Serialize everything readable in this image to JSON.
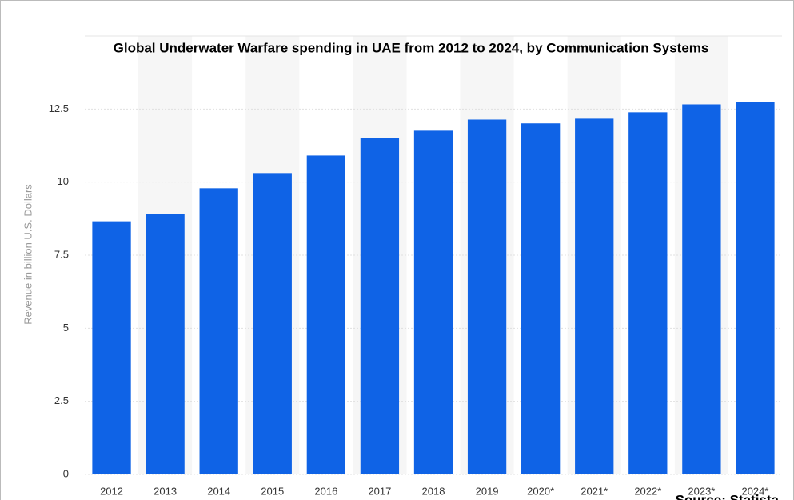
{
  "chart_data": {
    "type": "bar",
    "title": "Global Underwater Warfare spending in UAE from 2012 to 2024, by Communication Systems",
    "y_label": "Revenue in billion U.S. Dollars",
    "source": "Source: Statista",
    "categories": [
      "2012",
      "2013",
      "2014",
      "2015",
      "2016",
      "2017",
      "2018",
      "2019",
      "2020*",
      "2021*",
      "2022*",
      "2023*",
      "2024*"
    ],
    "values": [
      8.66,
      8.91,
      9.79,
      10.31,
      10.91,
      11.51,
      11.76,
      12.14,
      12.01,
      12.17,
      12.39,
      12.66,
      12.75
    ],
    "color": "#0f63e6",
    "ylim": [
      0,
      15
    ],
    "yticks": [
      0,
      2.5,
      5,
      7.5,
      10,
      12.5
    ],
    "grid": true
  }
}
